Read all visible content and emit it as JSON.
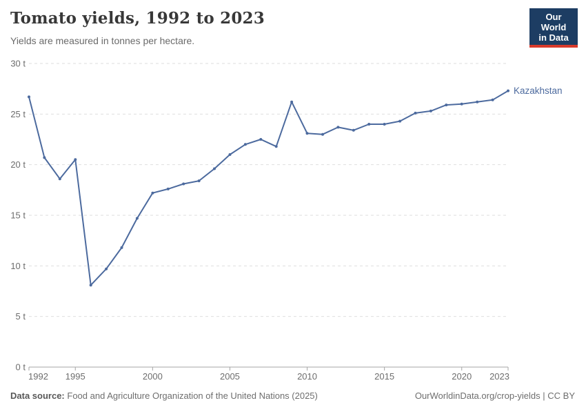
{
  "header": {
    "title": "Tomato yields, 1992 to 2023",
    "subtitle": "Yields are measured in tonnes per hectare.",
    "logo": {
      "line1": "Our World",
      "line2": "in Data"
    }
  },
  "colors": {
    "logo_bg": "#1d3d63",
    "logo_red": "#d93a2b",
    "series_blue": "#4c6a9e",
    "grid": "#dedede",
    "axis": "#a5a5a5",
    "tick_text": "#6d6d6d"
  },
  "chart_data": {
    "type": "line",
    "title": "Tomato yields, 1992 to 2023",
    "unit": "tonnes per hectare",
    "xlabel": "",
    "ylabel": "",
    "xlim": [
      1992,
      2023
    ],
    "ylim": [
      0,
      30
    ],
    "x_ticks": [
      1992,
      1995,
      2000,
      2005,
      2010,
      2015,
      2020,
      2023
    ],
    "y_ticks": [
      0,
      5,
      10,
      15,
      20,
      25,
      30
    ],
    "y_tick_suffix": " t",
    "grid": "horizontal-dashed",
    "legend_position": "end-of-line-label",
    "series": [
      {
        "name": "Kazakhstan",
        "color": "#4c6a9e",
        "years": [
          1992,
          1993,
          1994,
          1995,
          1996,
          1997,
          1998,
          1999,
          2000,
          2001,
          2002,
          2003,
          2004,
          2005,
          2006,
          2007,
          2008,
          2009,
          2010,
          2011,
          2012,
          2013,
          2014,
          2015,
          2016,
          2017,
          2018,
          2019,
          2020,
          2021,
          2022,
          2023
        ],
        "values": [
          26.7,
          20.7,
          18.6,
          20.5,
          8.1,
          9.7,
          11.8,
          14.7,
          17.2,
          17.6,
          18.1,
          18.4,
          19.6,
          21.0,
          22.0,
          22.5,
          21.8,
          26.2,
          23.1,
          23.0,
          23.7,
          23.4,
          24.0,
          24.0,
          24.3,
          25.1,
          25.3,
          25.9,
          26.0,
          26.2,
          26.4,
          27.3
        ]
      }
    ]
  },
  "footer": {
    "source_label": "Data source:",
    "source_text": "Food and Agriculture Organization of the United Nations (2025)",
    "credit": "OurWorldinData.org/crop-yields | CC BY"
  }
}
